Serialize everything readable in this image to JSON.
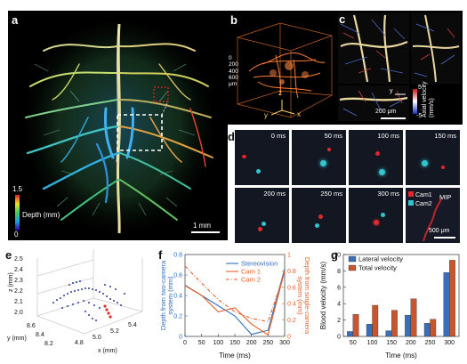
{
  "panels": {
    "a": {
      "label": "a",
      "colorbar_top": "1.5",
      "colorbar_bottom": "0",
      "colorbar_title": "Depth (mm)",
      "scalebar": "1 mm"
    },
    "b": {
      "label": "b",
      "ticks": [
        "0",
        "200",
        "400",
        "600"
      ],
      "unit": "μm",
      "axes": [
        "y",
        "z",
        "x"
      ]
    },
    "c": {
      "label": "c",
      "axis_y": "y",
      "axis_x": "x",
      "axis_z": "z",
      "colorbar_top": "5",
      "colorbar_bottom": "-5",
      "colorbar_title": "Axial velocity",
      "colorbar_unit": "(mm/s)",
      "scalebar": "200 μm"
    },
    "d": {
      "label": "d",
      "frames": [
        "0 ms",
        "50 ms",
        "100 ms",
        "150 ms",
        "200 ms",
        "250 ms",
        "300 ms"
      ],
      "legend": [
        "Cam1",
        "Cam2"
      ],
      "mip_label": "MIP",
      "scalebar": "500 μm",
      "colors": {
        "cam1": "#e2282c",
        "cam2": "#34c4cf"
      }
    },
    "e": {
      "label": "e",
      "z_label": "z (mm)",
      "y_label": "y (mm)",
      "x_label": "x (mm)",
      "z_ticks": [
        "2.5",
        "2.4",
        "2.3",
        "2.2",
        "2.1",
        "2.0"
      ],
      "y_ticks": [
        "8.6",
        "8.4",
        "8.2"
      ],
      "x_ticks": [
        "4.8",
        "5.0",
        "5.2",
        "5.4"
      ]
    },
    "f": {
      "label": "f"
    },
    "g": {
      "label": "g"
    }
  },
  "chart_data": [
    {
      "panel": "f",
      "type": "line",
      "xlabel": "Time (ms)",
      "ylabel_left": "Depth from two-camera system (mm)",
      "ylabel_right": "Depth from single-camera system (mm)",
      "x": [
        0,
        50,
        100,
        150,
        200,
        250,
        300
      ],
      "xlim": [
        0,
        300
      ],
      "ylim_left": [
        0,
        0.8
      ],
      "ylim_right": [
        0,
        1
      ],
      "yticks_left": [
        0,
        0.2,
        0.4,
        0.6,
        0.8
      ],
      "yticks_right": [
        0,
        0.2,
        0.4,
        0.6,
        0.8,
        1
      ],
      "xticks": [
        0,
        50,
        100,
        150,
        200,
        250,
        300
      ],
      "series": [
        {
          "name": "Stereovision",
          "axis": "left",
          "color": "#2f6fc0",
          "dash": "solid",
          "values": [
            0.5,
            0.4,
            0.3,
            0.2,
            0.02,
            0.06,
            0.66
          ]
        },
        {
          "name": "Cam 1",
          "axis": "right",
          "color": "#e0622a",
          "dash": "solid",
          "values": [
            0.62,
            0.5,
            0.3,
            0.35,
            0.15,
            0.02,
            0.8
          ]
        },
        {
          "name": "Cam 2",
          "axis": "right",
          "color": "#e0622a",
          "dash": "dash",
          "values": [
            0.86,
            0.65,
            0.45,
            0.3,
            0.22,
            0.18,
            0.78
          ]
        }
      ]
    },
    {
      "panel": "g",
      "type": "bar",
      "xlabel": "Time (ms)",
      "ylabel": "Blood velocity (mm/s)",
      "categories": [
        "50",
        "100",
        "150",
        "200",
        "250",
        "300"
      ],
      "ylim": [
        0,
        10
      ],
      "yticks": [
        0,
        2,
        4,
        6,
        8,
        10
      ],
      "series": [
        {
          "name": "Lateral velocity",
          "color": "#3a6fb8",
          "values": [
            0.6,
            1.5,
            0.7,
            2.6,
            1.6,
            7.8
          ]
        },
        {
          "name": "Total velocity",
          "color": "#c8552b",
          "values": [
            2.7,
            3.8,
            3.2,
            4.6,
            2.1,
            9.3
          ]
        }
      ]
    }
  ]
}
